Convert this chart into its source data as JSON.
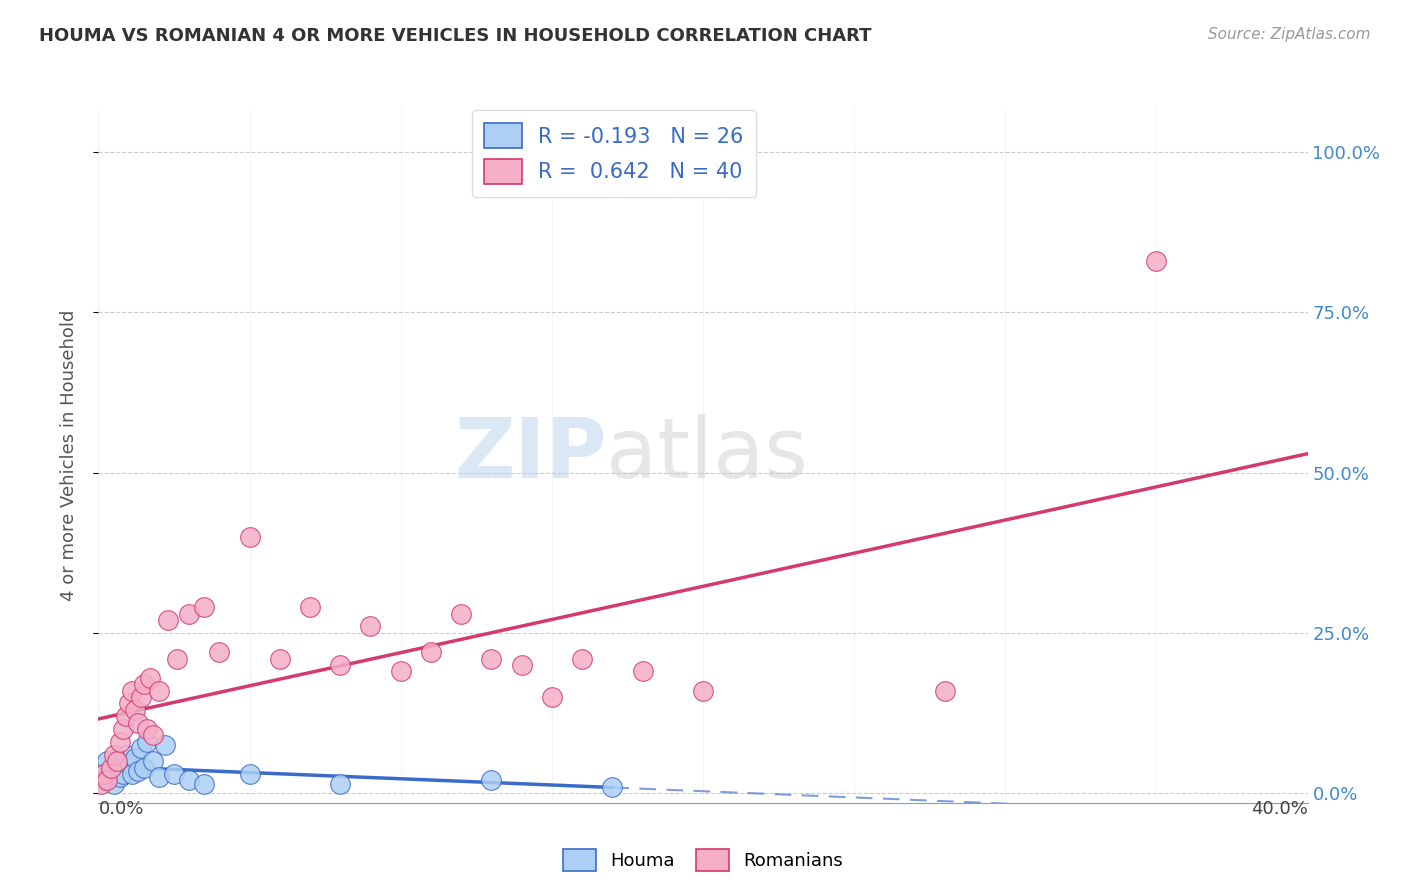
{
  "title": "HOUMA VS ROMANIAN 4 OR MORE VEHICLES IN HOUSEHOLD CORRELATION CHART",
  "source": "Source: ZipAtlas.com",
  "ylabel": "4 or more Vehicles in Household",
  "ytick_labels": [
    "0.0%",
    "25.0%",
    "50.0%",
    "75.0%",
    "100.0%"
  ],
  "ytick_values": [
    0.0,
    25.0,
    50.0,
    75.0,
    100.0
  ],
  "xlim": [
    0.0,
    40.0
  ],
  "ylim": [
    -1.5,
    107.0
  ],
  "houma_R": -0.193,
  "houma_N": 26,
  "romanian_R": 0.642,
  "romanian_N": 40,
  "houma_color": "#aecff5",
  "houma_line_color": "#3a6bc9",
  "romanian_color": "#f5aec8",
  "romanian_line_color": "#d43a6b",
  "houma_x": [
    0.1,
    0.2,
    0.3,
    0.4,
    0.5,
    0.6,
    0.7,
    0.8,
    0.9,
    1.0,
    1.1,
    1.2,
    1.3,
    1.4,
    1.5,
    1.6,
    1.8,
    2.0,
    2.2,
    2.5,
    3.0,
    3.5,
    5.0,
    8.0,
    13.0,
    17.0
  ],
  "houma_y": [
    3.0,
    2.0,
    5.0,
    3.5,
    1.5,
    4.0,
    2.5,
    3.0,
    6.0,
    4.5,
    3.0,
    5.5,
    3.5,
    7.0,
    4.0,
    8.0,
    5.0,
    2.5,
    7.5,
    3.0,
    2.0,
    1.5,
    3.0,
    1.5,
    2.0,
    1.0
  ],
  "romanian_x": [
    0.1,
    0.2,
    0.3,
    0.4,
    0.5,
    0.6,
    0.7,
    0.8,
    0.9,
    1.0,
    1.1,
    1.2,
    1.3,
    1.4,
    1.5,
    1.6,
    1.7,
    1.8,
    2.0,
    2.3,
    2.6,
    3.0,
    3.5,
    4.0,
    5.0,
    6.0,
    7.0,
    8.0,
    9.0,
    10.0,
    11.0,
    12.0,
    13.0,
    14.0,
    15.0,
    16.0,
    18.0,
    20.0,
    28.0,
    35.0
  ],
  "romanian_y": [
    1.5,
    3.0,
    2.0,
    4.0,
    6.0,
    5.0,
    8.0,
    10.0,
    12.0,
    14.0,
    16.0,
    13.0,
    11.0,
    15.0,
    17.0,
    10.0,
    18.0,
    9.0,
    16.0,
    27.0,
    21.0,
    28.0,
    29.0,
    22.0,
    40.0,
    21.0,
    29.0,
    20.0,
    26.0,
    19.0,
    22.0,
    28.0,
    21.0,
    20.0,
    15.0,
    21.0,
    19.0,
    16.0,
    16.0,
    83.0
  ]
}
